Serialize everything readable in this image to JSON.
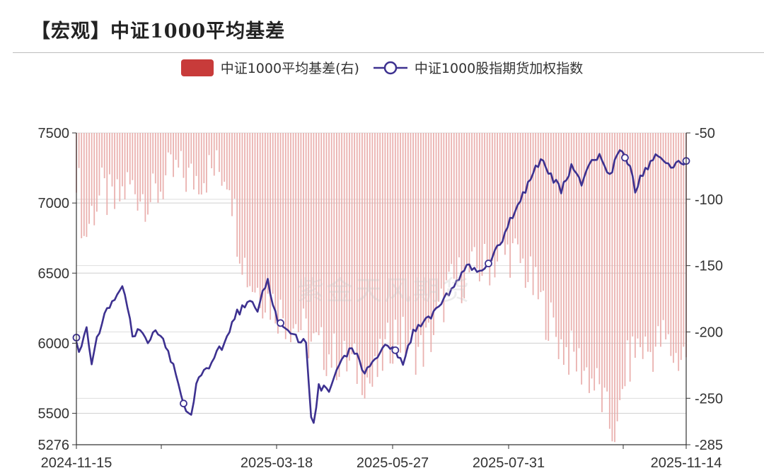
{
  "title": "【宏观】中证1000平均基差",
  "watermark": "紫金天风期货",
  "colors": {
    "bar": "#e8a8a6",
    "bar_legend": "#c83b3a",
    "line": "#3d3190",
    "grid": "#cfcfcf"
  },
  "chart_data": {
    "type": "bar+line",
    "legend": [
      "中证1000平均基差(右)",
      "中证1000股指期货加权指数"
    ],
    "x_tick_labels": [
      "2024-11-15",
      "2025-03-18",
      "2025-05-27",
      "2025-07-31",
      "2025-11-14"
    ],
    "left_axis": {
      "min": 5276,
      "max": 7500,
      "ticks": [
        5276,
        5500,
        6000,
        6500,
        7000,
        7500
      ]
    },
    "right_axis": {
      "min": -285,
      "max": -50,
      "ticks": [
        -50,
        -100,
        -150,
        -200,
        -250,
        -285
      ]
    },
    "n_points": 240,
    "series": [
      {
        "name": "中证1000股指期货加权指数",
        "axis": "left",
        "type": "line",
        "keyframes": [
          [
            0,
            6040
          ],
          [
            3,
            5920
          ],
          [
            8,
            6130
          ],
          [
            12,
            5870
          ],
          [
            16,
            6050
          ],
          [
            22,
            6200
          ],
          [
            30,
            6300
          ],
          [
            37,
            6400
          ],
          [
            44,
            6050
          ],
          [
            50,
            6100
          ],
          [
            55,
            6000
          ],
          [
            62,
            6120
          ],
          [
            68,
            6020
          ],
          [
            76,
            5850
          ],
          [
            84,
            5570
          ],
          [
            90,
            5490
          ],
          [
            95,
            5740
          ],
          [
            102,
            5800
          ],
          [
            108,
            5900
          ],
          [
            116,
            6000
          ],
          [
            124,
            6190
          ],
          [
            134,
            6300
          ],
          [
            142,
            6250
          ],
          [
            150,
            6440
          ],
          [
            158,
            6160
          ],
          [
            168,
            6080
          ],
          [
            180,
            5990
          ],
          [
            185,
            5350
          ],
          [
            190,
            5700
          ],
          [
            198,
            5660
          ],
          [
            204,
            5780
          ],
          [
            210,
            5930
          ],
          [
            218,
            5940
          ],
          [
            226,
            5780
          ],
          [
            232,
            5880
          ],
          [
            240,
            5960
          ],
          [
            248,
            5980
          ],
          [
            256,
            5860
          ],
          [
            264,
            6080
          ],
          [
            272,
            6140
          ],
          [
            280,
            6200
          ],
          [
            290,
            6330
          ],
          [
            300,
            6480
          ],
          [
            308,
            6550
          ],
          [
            316,
            6490
          ],
          [
            324,
            6580
          ],
          [
            332,
            6700
          ],
          [
            340,
            6870
          ],
          [
            348,
            7010
          ],
          [
            356,
            7180
          ],
          [
            364,
            7300
          ],
          [
            372,
            7200
          ],
          [
            380,
            7080
          ],
          [
            388,
            7260
          ],
          [
            396,
            7150
          ],
          [
            404,
            7300
          ],
          [
            412,
            7330
          ],
          [
            418,
            7200
          ],
          [
            426,
            7370
          ],
          [
            432,
            7300
          ],
          [
            438,
            7100
          ],
          [
            446,
            7240
          ],
          [
            454,
            7340
          ],
          [
            462,
            7260
          ],
          [
            470,
            7290
          ],
          [
            478,
            7300
          ]
        ],
        "markers_at": [
          0,
          84,
          160,
          250,
          323,
          430,
          478
        ]
      },
      {
        "name": "中证1000平均基差(右)",
        "axis": "right",
        "type": "bar",
        "keyframes": [
          [
            0,
            -75
          ],
          [
            6,
            -130
          ],
          [
            12,
            -110
          ],
          [
            20,
            -95
          ],
          [
            30,
            -105
          ],
          [
            40,
            -90
          ],
          [
            50,
            -95
          ],
          [
            60,
            -100
          ],
          [
            70,
            -85
          ],
          [
            80,
            -80
          ],
          [
            90,
            -85
          ],
          [
            100,
            -80
          ],
          [
            110,
            -78
          ],
          [
            120,
            -80
          ],
          [
            125,
            -120
          ],
          [
            135,
            -160
          ],
          [
            145,
            -170
          ],
          [
            155,
            -180
          ],
          [
            165,
            -190
          ],
          [
            175,
            -195
          ],
          [
            185,
            -210
          ],
          [
            195,
            -215
          ],
          [
            205,
            -220
          ],
          [
            215,
            -225
          ],
          [
            225,
            -230
          ],
          [
            232,
            -240
          ],
          [
            240,
            -220
          ],
          [
            250,
            -200
          ],
          [
            260,
            -210
          ],
          [
            270,
            -215
          ],
          [
            280,
            -200
          ],
          [
            290,
            -170
          ],
          [
            300,
            -160
          ],
          [
            310,
            -155
          ],
          [
            320,
            -150
          ],
          [
            330,
            -145
          ],
          [
            340,
            -140
          ],
          [
            350,
            -150
          ],
          [
            360,
            -170
          ],
          [
            370,
            -190
          ],
          [
            380,
            -210
          ],
          [
            390,
            -220
          ],
          [
            400,
            -230
          ],
          [
            410,
            -245
          ],
          [
            418,
            -270
          ],
          [
            424,
            -280
          ],
          [
            430,
            -230
          ],
          [
            440,
            -210
          ],
          [
            450,
            -215
          ],
          [
            460,
            -205
          ],
          [
            470,
            -220
          ],
          [
            478,
            -215
          ]
        ]
      }
    ]
  }
}
